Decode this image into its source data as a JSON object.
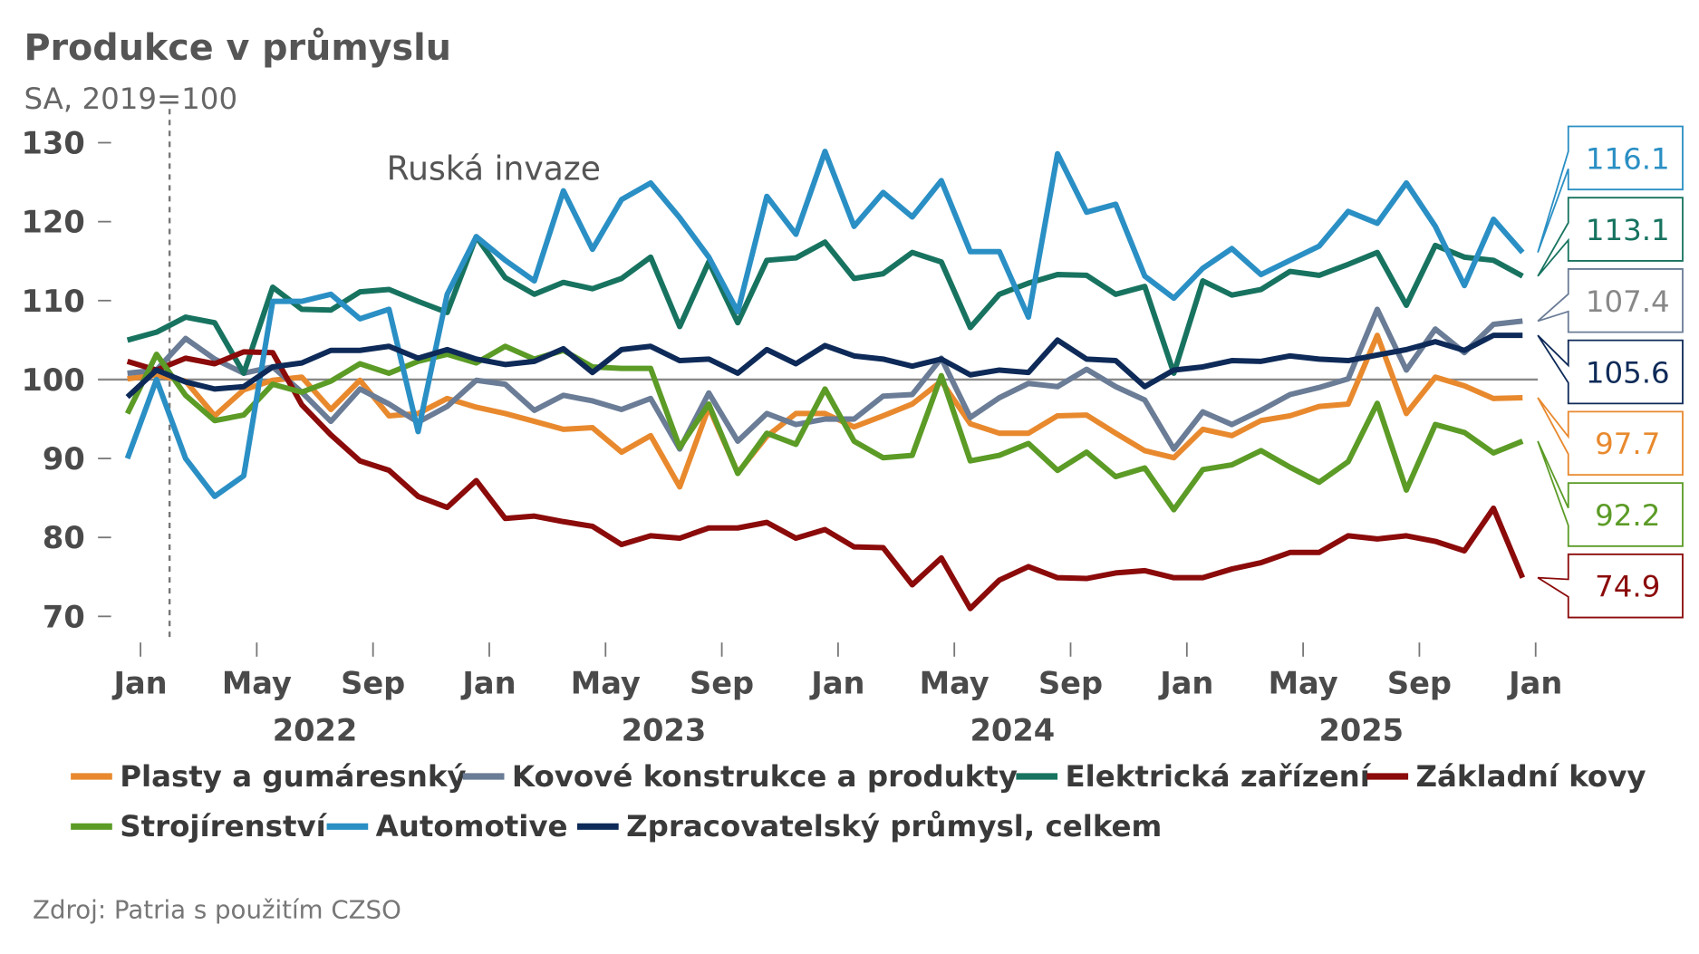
{
  "chart_data": {
    "type": "line",
    "title": "Produkce v průmyslu",
    "subtitle": "SA, 2019=100",
    "source": "Zdroj: Patria s použitím CZSO",
    "annotation": {
      "text": "Ruská invaze",
      "x": "2022-02"
    },
    "hline": 100,
    "ylim": [
      67,
      132
    ],
    "yticks": [
      70,
      80,
      90,
      100,
      110,
      120,
      130
    ],
    "x": [
      "2021-12",
      "2022-01",
      "2022-02",
      "2022-03",
      "2022-04",
      "2022-05",
      "2022-06",
      "2022-07",
      "2022-08",
      "2022-09",
      "2022-10",
      "2022-11",
      "2022-12",
      "2023-01",
      "2023-02",
      "2023-03",
      "2023-04",
      "2023-05",
      "2023-06",
      "2023-07",
      "2023-08",
      "2023-09",
      "2023-10",
      "2023-11",
      "2023-12",
      "2024-01",
      "2024-02",
      "2024-03",
      "2024-04",
      "2024-05",
      "2024-06",
      "2024-07",
      "2024-08",
      "2024-09",
      "2024-10",
      "2024-11",
      "2024-12",
      "2025-01",
      "2025-02",
      "2025-03",
      "2025-04",
      "2025-05",
      "2025-06",
      "2025-07",
      "2025-08",
      "2025-09",
      "2025-10",
      "2025-11",
      "2025-12"
    ],
    "xticks": [
      {
        "value": "2022-01",
        "label": "Jan"
      },
      {
        "value": "2022-05",
        "label": "May"
      },
      {
        "value": "2022-09",
        "label": "Sep"
      },
      {
        "value": "2023-01",
        "label": "Jan"
      },
      {
        "value": "2023-05",
        "label": "May"
      },
      {
        "value": "2023-09",
        "label": "Sep"
      },
      {
        "value": "2024-01",
        "label": "Jan"
      },
      {
        "value": "2024-05",
        "label": "May"
      },
      {
        "value": "2024-09",
        "label": "Sep"
      },
      {
        "value": "2025-01",
        "label": "Jan"
      },
      {
        "value": "2025-05",
        "label": "May"
      },
      {
        "value": "2025-09",
        "label": "Sep"
      },
      {
        "value": "2026-01",
        "label": "Jan"
      }
    ],
    "year_labels": [
      "2022",
      "2023",
      "2024",
      "2025"
    ],
    "series": [
      {
        "name": "Plasty a gumáresnký",
        "color": "#e8892e",
        "values": [
          100.1,
          100.6,
          99.8,
          95.4,
          98.7,
          99.9,
          100.3,
          96.2,
          99.9,
          95.4,
          95.7,
          97.6,
          96.5,
          95.7,
          94.7,
          93.7,
          93.9,
          90.8,
          92.9,
          86.4,
          96.5,
          88.2,
          92.8,
          95.7,
          95.7,
          94,
          95.4,
          96.9,
          99.8,
          94.4,
          93.2,
          93.2,
          95.4,
          95.5,
          93.2,
          91,
          90.1,
          93.7,
          92.9,
          94.8,
          95.4,
          96.6,
          96.9,
          105.6,
          95.7,
          100.3,
          99.2,
          97.6,
          97.7
        ]
      },
      {
        "name": "Kovové konstrukce a produkty",
        "color": "#6a7c96",
        "values": [
          100.8,
          101.2,
          105.2,
          102.6,
          100.8,
          101.6,
          98.4,
          94.7,
          98.8,
          96.9,
          94.6,
          96.6,
          99.9,
          99.4,
          96.1,
          98,
          97.3,
          96.2,
          97.6,
          91.2,
          98.3,
          92.2,
          95.7,
          94.3,
          95,
          95,
          97.9,
          98.1,
          102.7,
          95.2,
          97.7,
          99.5,
          99.1,
          101.3,
          99.1,
          97.4,
          91.2,
          95.9,
          94.3,
          96.1,
          98.1,
          99,
          100.1,
          108.9,
          101.2,
          106.4,
          103.4,
          107,
          107.4
        ]
      },
      {
        "name": "Elektrická zařízení",
        "color": "#17735f",
        "values": [
          105,
          106,
          107.9,
          107.2,
          100.8,
          111.7,
          108.9,
          108.8,
          111.1,
          111.4,
          109.9,
          108.5,
          118.1,
          112.9,
          110.8,
          112.3,
          111.5,
          112.8,
          115.5,
          106.7,
          114.9,
          107.2,
          115.1,
          115.4,
          117.4,
          112.8,
          113.4,
          116.1,
          114.9,
          106.6,
          110.8,
          112.2,
          113.3,
          113.2,
          110.8,
          111.8,
          100.8,
          112.5,
          110.7,
          111.4,
          113.7,
          113.2,
          114.6,
          116.1,
          109.4,
          117,
          115.5,
          115.1,
          113.1
        ]
      },
      {
        "name": "Základní kovy",
        "color": "#8b0a0a",
        "values": [
          102.3,
          101.2,
          102.7,
          102,
          103.5,
          103.4,
          96.8,
          93,
          89.7,
          88.5,
          85.2,
          83.8,
          87.2,
          82.4,
          82.7,
          82,
          81.4,
          79.1,
          80.2,
          79.9,
          81.2,
          81.2,
          81.9,
          79.9,
          81,
          78.8,
          78.7,
          74,
          77.4,
          71,
          74.6,
          76.3,
          74.9,
          74.8,
          75.5,
          75.8,
          74.9,
          74.9,
          76,
          76.8,
          78.1,
          78.1,
          80.2,
          79.8,
          80.2,
          79.5,
          78.3,
          83.7,
          74.9
        ]
      },
      {
        "name": "Strojírenství",
        "color": "#5b9b26",
        "values": [
          95.7,
          103.2,
          98,
          94.8,
          95.5,
          99.4,
          98.4,
          99.8,
          102,
          100.8,
          102.3,
          103.2,
          102.1,
          104.2,
          102.6,
          103.7,
          101.6,
          101.4,
          101.4,
          91.4,
          96.9,
          88.1,
          93.2,
          91.8,
          98.8,
          92.2,
          90.1,
          90.4,
          100.5,
          89.7,
          90.4,
          91.9,
          88.5,
          90.8,
          87.7,
          88.8,
          83.5,
          88.6,
          89.2,
          91,
          88.9,
          87,
          89.6,
          97,
          86,
          94.3,
          93.3,
          90.7,
          92.2
        ]
      },
      {
        "name": "Automotive",
        "color": "#2a8fc4",
        "values": [
          90,
          100,
          90,
          85.2,
          87.8,
          109.9,
          109.9,
          110.8,
          107.7,
          108.9,
          93.4,
          110.8,
          118.1,
          115.1,
          112.5,
          123.9,
          116.5,
          122.8,
          124.9,
          120.5,
          115.5,
          108.6,
          123.2,
          118.4,
          128.9,
          119.4,
          123.7,
          120.6,
          125.2,
          116.2,
          116.2,
          107.9,
          128.6,
          121.2,
          122.2,
          113.1,
          110.3,
          114.1,
          116.6,
          113.3,
          115.1,
          116.9,
          121.3,
          119.8,
          124.9,
          119.4,
          111.9,
          120.3,
          116.1
        ]
      },
      {
        "name": "Zpracovatelský průmysl, celkem",
        "color": "#0e2a58",
        "values": [
          97.8,
          101.2,
          99.7,
          98.8,
          99.1,
          101.6,
          102.1,
          103.7,
          103.7,
          104.2,
          102.7,
          103.8,
          102.6,
          101.9,
          102.3,
          103.9,
          100.9,
          103.8,
          104.2,
          102.4,
          102.6,
          100.8,
          103.8,
          102,
          104.3,
          103,
          102.6,
          101.7,
          102.6,
          100.6,
          101.2,
          100.9,
          105,
          102.6,
          102.4,
          99.1,
          101.2,
          101.6,
          102.4,
          102.3,
          103,
          102.6,
          102.4,
          103.1,
          103.8,
          104.8,
          103.7,
          105.6,
          105.6
        ]
      }
    ]
  }
}
